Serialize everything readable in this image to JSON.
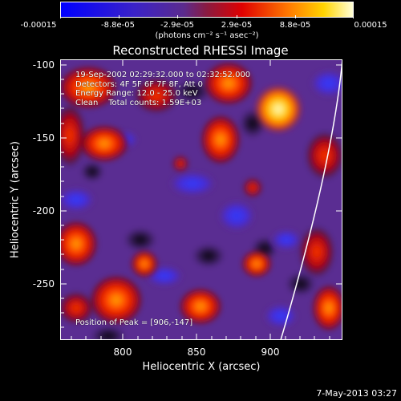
{
  "colorbar": {
    "tick_labels": [
      "-0.00015",
      "-8.8e-05",
      "-2.9e-05",
      "2.9e-05",
      "8.8e-05",
      "0.00015"
    ],
    "units_label": "(photons cm⁻² s⁻¹ asec⁻²)"
  },
  "title": "Reconstructed RHESSI Image",
  "info": {
    "time_range": "19-Sep-2002 02:29:32.000 to 02:32:52.000",
    "detectors": "Detectors: 4F 5F 6F 7F 8F, Att 0",
    "energy_range": "Energy Range: 12.0 - 25.0 keV",
    "method_counts": "Clean    Total counts: 1.59E+03",
    "peak": "Position of Peak = [906,-147]"
  },
  "axes": {
    "xlabel": "Heliocentric X (arcsec)",
    "ylabel": "Heliocentric Y (arcsec)",
    "xticks": [
      "800",
      "850",
      "900"
    ],
    "yticks": [
      "-100",
      "-150",
      "-200",
      "-250"
    ]
  },
  "datestamp": "7-May-2013 03:27",
  "colors": {
    "background": "#000000",
    "low": "#1a1aff",
    "mid": "#5a2a90",
    "high": "#ffffc0"
  }
}
